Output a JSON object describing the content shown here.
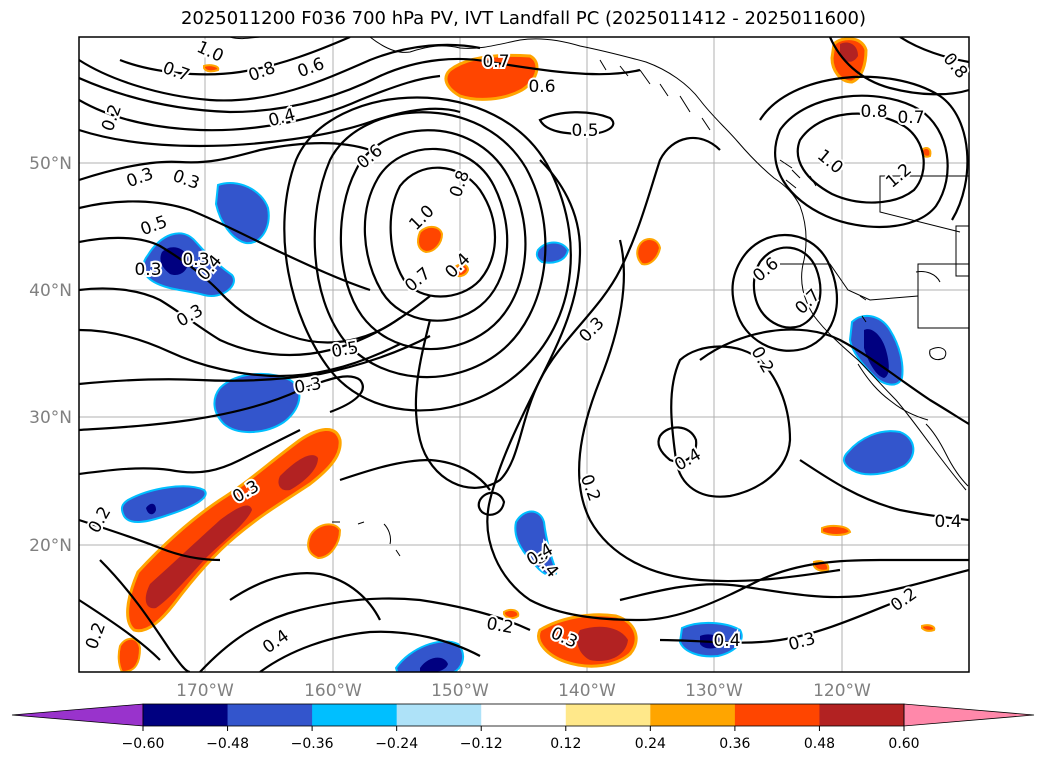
{
  "title": "2025011200 F036 700 hPa PV, IVT Landfall PC (2025011412 - 2025011600)",
  "lat_labels": [
    "50°N",
    "40°N",
    "30°N",
    "20°N"
  ],
  "lon_labels": [
    "170°W",
    "160°W",
    "150°W",
    "140°W",
    "130°W",
    "120°W"
  ],
  "contour_labels": [
    "1.0",
    "0.7",
    "0.8",
    "0.6",
    "0.4",
    "0.2",
    "0.3",
    "0.3",
    "0.5",
    "0.4",
    "0.3",
    "0.7",
    "0.6",
    "0.5",
    "0.6",
    "1.0",
    "0.8",
    "0.7",
    "0.4",
    "0.5",
    "0.3",
    "0.3",
    "0.6",
    "0.7",
    "0.2",
    "0.3",
    "0.4",
    "0.2",
    "0.2",
    "0.2",
    "0.4",
    "0.3",
    "0.3",
    "0.4",
    "0.2",
    "0.4",
    "0.3",
    "0.4",
    "0.2",
    "0.8",
    "0.7",
    "1.0",
    "1.2",
    "0.8",
    "0.3",
    "0.4"
  ],
  "colorbar": {
    "colors": [
      "#9933cc",
      "#000080",
      "#3355cc",
      "#00bfff",
      "#aee2f8",
      "#ffffff",
      "#ffe88a",
      "#ffa500",
      "#ff4500",
      "#b22222",
      "#ff88aa"
    ],
    "ticks": [
      "−0.60",
      "−0.48",
      "−0.36",
      "−0.24",
      "−0.12",
      "0.12",
      "0.24",
      "0.36",
      "0.48",
      "0.60"
    ]
  },
  "map": {
    "frame_color": "#000000",
    "grid_color": "#b0b0b0",
    "contour_color": "#000000"
  }
}
